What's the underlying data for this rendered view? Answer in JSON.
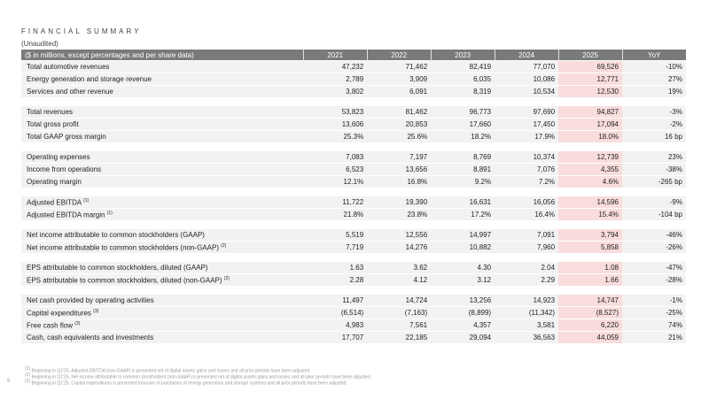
{
  "title": "FINANCIAL SUMMARY",
  "subtitle": "(Unaudited)",
  "header": [
    "($ in millions, except percentages and per share data)",
    "2021",
    "2022",
    "2023",
    "2024",
    "2025",
    "YoY"
  ],
  "highlight_color": "#f9dcdc",
  "groups": [
    [
      {
        "label": "Total automotive revenues",
        "values": [
          "47,232",
          "71,462",
          "82,419",
          "77,070",
          "69,526",
          "-10%"
        ]
      },
      {
        "label": "Energy generation and storage revenue",
        "values": [
          "2,789",
          "3,909",
          "6,035",
          "10,086",
          "12,771",
          "27%"
        ]
      },
      {
        "label": "Services and other revenue",
        "values": [
          "3,802",
          "6,091",
          "8,319",
          "10,534",
          "12,530",
          "19%"
        ]
      }
    ],
    [
      {
        "label": "Total revenues",
        "values": [
          "53,823",
          "81,462",
          "96,773",
          "97,690",
          "94,827",
          "-3%"
        ]
      },
      {
        "label": "Total gross profit",
        "values": [
          "13,606",
          "20,853",
          "17,660",
          "17,450",
          "17,094",
          "-2%"
        ]
      },
      {
        "label": "Total GAAP gross margin",
        "values": [
          "25.3%",
          "25.6%",
          "18.2%",
          "17.9%",
          "18.0%",
          "16 bp"
        ]
      }
    ],
    [
      {
        "label": "Operating expenses",
        "values": [
          "7,083",
          "7,197",
          "8,769",
          "10,374",
          "12,739",
          "23%"
        ]
      },
      {
        "label": "Income from operations",
        "values": [
          "6,523",
          "13,656",
          "8,891",
          "7,076",
          "4,355",
          "-38%"
        ]
      },
      {
        "label": "Operating margin",
        "values": [
          "12.1%",
          "16.8%",
          "9.2%",
          "7.2%",
          "4.6%",
          "-265 bp"
        ]
      }
    ],
    [
      {
        "label": "Adjusted EBITDA",
        "note": "(1)",
        "values": [
          "11,722",
          "19,390",
          "16,631",
          "16,056",
          "14,596",
          "-9%"
        ]
      },
      {
        "label": "Adjusted EBITDA margin",
        "note": "(1)",
        "values": [
          "21.8%",
          "23.8%",
          "17.2%",
          "16.4%",
          "15.4%",
          "-104 bp"
        ]
      }
    ],
    [
      {
        "label": "Net income attributable to common stockholders (GAAP)",
        "values": [
          "5,519",
          "12,556",
          "14,997",
          "7,091",
          "3,794",
          "-46%"
        ]
      },
      {
        "label": "Net income attributable to common stockholders (non-GAAP)",
        "note": "(2)",
        "values": [
          "7,719",
          "14,276",
          "10,882",
          "7,960",
          "5,858",
          "-26%"
        ]
      }
    ],
    [
      {
        "label": "EPS attributable to common stockholders, diluted (GAAP)",
        "values": [
          "1.63",
          "3.62",
          "4.30",
          "2.04",
          "1.08",
          "-47%"
        ]
      },
      {
        "label": "EPS attributable to common stockholders, diluted (non-GAAP)",
        "note": "(2)",
        "values": [
          "2.28",
          "4.12",
          "3.12",
          "2.29",
          "1.66",
          "-28%"
        ]
      }
    ],
    [
      {
        "label": "Net cash provided by operating activities",
        "values": [
          "11,497",
          "14,724",
          "13,256",
          "14,923",
          "14,747",
          "-1%"
        ]
      },
      {
        "label": "Capital expenditures",
        "note": "(3)",
        "values": [
          "(6,514)",
          "(7,163)",
          "(8,899)",
          "(11,342)",
          "(8,527)",
          "-25%"
        ]
      },
      {
        "label": "Free cash flow",
        "note": "(3)",
        "values": [
          "4,983",
          "7,561",
          "4,357",
          "3,581",
          "6,220",
          "74%"
        ]
      },
      {
        "label": "Cash, cash equivalents and investments",
        "values": [
          "17,707",
          "22,185",
          "29,094",
          "36,563",
          "44,059",
          "21%"
        ]
      }
    ]
  ],
  "footnotes": [
    {
      "mark": "(1)",
      "text": "Beginning in Q1'25, Adjusted EBITDA (non-GAAP) is presented net of digital assets gains and losses and all prior periods have been adjusted."
    },
    {
      "mark": "(2)",
      "text": "Beginning in Q1'25, Net income attributable to common stockholders (non-GAAP) is presented net of digital assets gains and losses and all prior periods have been adjusted."
    },
    {
      "mark": "(3)",
      "text": "Beginning in Q1'25, Capital expenditures is presented inclusive of purchases of energy generation and storage systems and all prior periods have been adjusted."
    }
  ],
  "page_number": "5"
}
